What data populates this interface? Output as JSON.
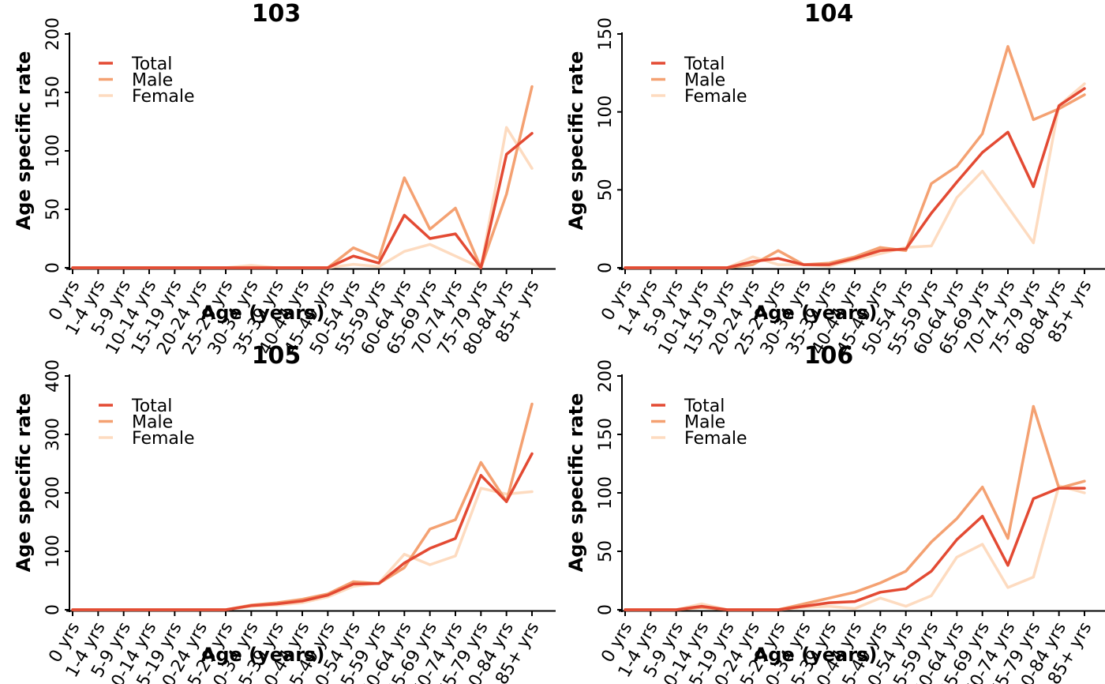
{
  "colors": {
    "total": "#E34A33",
    "male": "#F4A172",
    "female": "#FDDBC0",
    "axis": "#000000"
  },
  "chart_data": [
    {
      "type": "line",
      "title": "103",
      "xlabel": "Age (years)",
      "ylabel": "Age specific rate",
      "ylim": [
        0,
        200
      ],
      "yticks": [
        0,
        50,
        100,
        150,
        200
      ],
      "legend": "top-left",
      "grid": false,
      "categories": [
        "0 yrs",
        "1-4 yrs",
        "5-9 yrs",
        "10-14 yrs",
        "15-19 yrs",
        "20-24 yrs",
        "25-29 yrs",
        "30-34 yrs",
        "35-39 yrs",
        "40-44 yrs",
        "45-49 yrs",
        "50-54 yrs",
        "55-59 yrs",
        "60-64 yrs",
        "65-69 yrs",
        "70-74 yrs",
        "75-79 yrs",
        "80-84 yrs",
        "85+ yrs"
      ],
      "series": [
        {
          "name": "Total",
          "color_key": "total",
          "values": [
            0,
            0,
            0,
            0,
            0,
            0,
            0,
            0,
            0,
            0,
            0,
            10,
            4,
            45,
            25,
            29,
            0,
            97,
            115
          ]
        },
        {
          "name": "Male",
          "color_key": "male",
          "values": [
            0,
            0,
            0,
            0,
            0,
            0,
            0,
            0,
            0,
            0,
            0,
            17,
            8,
            77,
            33,
            51,
            0,
            63,
            155
          ]
        },
        {
          "name": "Female",
          "color_key": "female",
          "values": [
            0,
            0,
            0,
            0,
            0,
            0,
            0,
            2,
            0,
            0,
            0,
            3,
            1,
            14,
            20,
            10,
            0,
            120,
            85
          ]
        }
      ]
    },
    {
      "type": "line",
      "title": "104",
      "xlabel": "Age (years)",
      "ylabel": "Age specific rate",
      "ylim": [
        0,
        150
      ],
      "yticks": [
        0,
        50,
        100,
        150
      ],
      "legend": "top-left",
      "grid": false,
      "categories": [
        "0 yrs",
        "1-4 yrs",
        "5-9 yrs",
        "10-14 yrs",
        "15-19 yrs",
        "20-24 yrs",
        "25-29 yrs",
        "30-34 yrs",
        "35-39 yrs",
        "40-44 yrs",
        "45-49 yrs",
        "50-54 yrs",
        "55-59 yrs",
        "60-64 yrs",
        "65-69 yrs",
        "70-74 yrs",
        "75-79 yrs",
        "80-84 yrs",
        "85+ yrs"
      ],
      "series": [
        {
          "name": "Total",
          "color_key": "total",
          "values": [
            0,
            0,
            0,
            0,
            0,
            4,
            6,
            2,
            2,
            6,
            11,
            12,
            35,
            55,
            74,
            87,
            52,
            104,
            115
          ]
        },
        {
          "name": "Male",
          "color_key": "male",
          "values": [
            0,
            0,
            0,
            0,
            0,
            2,
            11,
            2,
            3,
            7,
            13,
            11,
            54,
            65,
            86,
            142,
            95,
            102,
            111
          ]
        },
        {
          "name": "Female",
          "color_key": "female",
          "values": [
            0,
            0,
            0,
            0,
            0,
            7,
            2,
            2,
            1,
            5,
            9,
            13,
            14,
            45,
            62,
            39,
            16,
            104,
            118
          ]
        }
      ]
    },
    {
      "type": "line",
      "title": "105",
      "xlabel": "Age (years)",
      "ylabel": "Age specific rate",
      "ylim": [
        0,
        400
      ],
      "yticks": [
        0,
        100,
        200,
        300,
        400
      ],
      "legend": "top-left",
      "grid": false,
      "categories": [
        "0 yrs",
        "1-4 yrs",
        "5-9 yrs",
        "10-14 yrs",
        "15-19 yrs",
        "20-24 yrs",
        "25-29 yrs",
        "30-34 yrs",
        "35-39 yrs",
        "40-44 yrs",
        "45-49 yrs",
        "50-54 yrs",
        "55-59 yrs",
        "60-64 yrs",
        "65-69 yrs",
        "70-74 yrs",
        "75-79 yrs",
        "80-84 yrs",
        "85+ yrs"
      ],
      "series": [
        {
          "name": "Total",
          "color_key": "total",
          "values": [
            0,
            0,
            0,
            0,
            0,
            0,
            0,
            7,
            10,
            15,
            25,
            44,
            45,
            80,
            105,
            122,
            230,
            185,
            267
          ]
        },
        {
          "name": "Male",
          "color_key": "male",
          "values": [
            0,
            0,
            0,
            0,
            0,
            0,
            0,
            8,
            12,
            18,
            27,
            48,
            45,
            72,
            138,
            154,
            252,
            185,
            352
          ]
        },
        {
          "name": "Female",
          "color_key": "female",
          "values": [
            0,
            0,
            0,
            0,
            0,
            0,
            0,
            6,
            8,
            12,
            22,
            40,
            46,
            95,
            77,
            92,
            208,
            198,
            202
          ]
        }
      ]
    },
    {
      "type": "line",
      "title": "106",
      "xlabel": "Age (years)",
      "ylabel": "Age specific rate",
      "ylim": [
        0,
        200
      ],
      "yticks": [
        0,
        50,
        100,
        150,
        200
      ],
      "legend": "top-left",
      "grid": false,
      "categories": [
        "0 yrs",
        "1-4 yrs",
        "5-9 yrs",
        "10-14 yrs",
        "15-19 yrs",
        "20-24 yrs",
        "25-29 yrs",
        "30-34 yrs",
        "35-39 yrs",
        "40-44 yrs",
        "45-49 yrs",
        "50-54 yrs",
        "55-59 yrs",
        "60-64 yrs",
        "65-69 yrs",
        "70-74 yrs",
        "75-79 yrs",
        "80-84 yrs",
        "85+ yrs"
      ],
      "series": [
        {
          "name": "Total",
          "color_key": "total",
          "values": [
            0,
            0,
            0,
            3,
            0,
            0,
            0,
            3,
            6,
            7,
            15,
            18,
            33,
            60,
            80,
            38,
            95,
            104,
            104
          ]
        },
        {
          "name": "Male",
          "color_key": "male",
          "values": [
            0,
            0,
            0,
            2,
            0,
            0,
            0,
            5,
            10,
            15,
            23,
            33,
            58,
            78,
            105,
            61,
            174,
            104,
            110
          ]
        },
        {
          "name": "Female",
          "color_key": "female",
          "values": [
            0,
            0,
            0,
            5,
            0,
            0,
            0,
            2,
            3,
            1,
            10,
            3,
            12,
            45,
            56,
            19,
            28,
            106,
            100
          ]
        }
      ]
    }
  ]
}
